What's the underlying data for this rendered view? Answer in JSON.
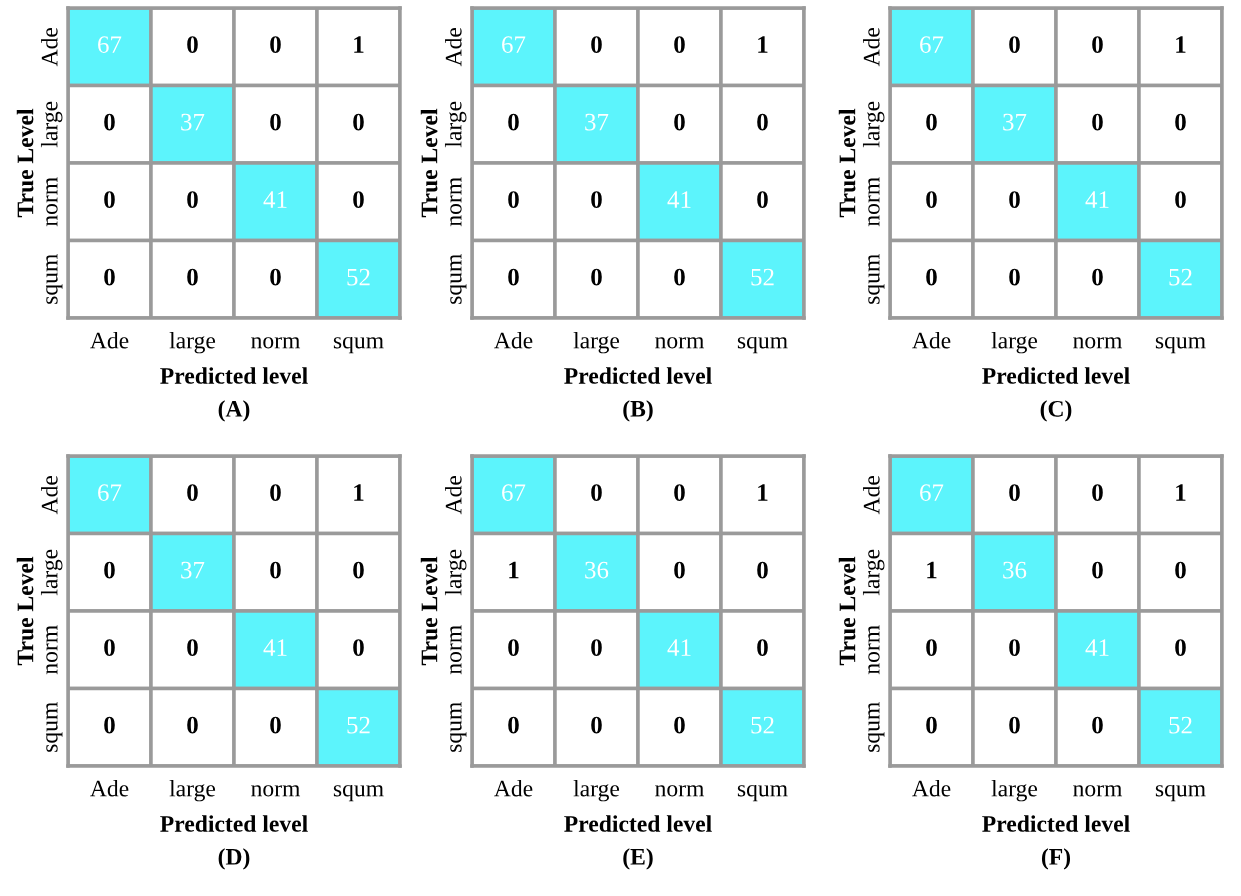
{
  "chart_data": [
    {
      "type": "heatmap",
      "title": "(A)",
      "xlabel": "Predicted level",
      "ylabel": "True Level",
      "categories": [
        "Ade",
        "large",
        "norm",
        "squm"
      ],
      "y_categories": [
        "Ade",
        "large",
        "norm",
        "squm"
      ],
      "cells": [
        [
          67,
          0,
          0,
          1
        ],
        [
          0,
          37,
          0,
          0
        ],
        [
          0,
          0,
          41,
          0
        ],
        [
          0,
          0,
          0,
          52
        ]
      ],
      "colors": [
        "#ffffff",
        "#5cf4fc"
      ],
      "data_labels": true
    },
    {
      "type": "heatmap",
      "title": "(B)",
      "xlabel": "Predicted level",
      "ylabel": "True Level",
      "categories": [
        "Ade",
        "large",
        "norm",
        "squm"
      ],
      "y_categories": [
        "Ade",
        "large",
        "norm",
        "squm"
      ],
      "cells": [
        [
          67,
          0,
          0,
          1
        ],
        [
          0,
          37,
          0,
          0
        ],
        [
          0,
          0,
          41,
          0
        ],
        [
          0,
          0,
          0,
          52
        ]
      ],
      "colors": [
        "#ffffff",
        "#5cf4fc"
      ],
      "data_labels": true
    },
    {
      "type": "heatmap",
      "title": "(C)",
      "xlabel": "Predicted level",
      "ylabel": "True Level",
      "categories": [
        "Ade",
        "large",
        "norm",
        "squm"
      ],
      "y_categories": [
        "Ade",
        "large",
        "norm",
        "squm"
      ],
      "cells": [
        [
          67,
          0,
          0,
          1
        ],
        [
          0,
          37,
          0,
          0
        ],
        [
          0,
          0,
          41,
          0
        ],
        [
          0,
          0,
          0,
          52
        ]
      ],
      "colors": [
        "#ffffff",
        "#5cf4fc"
      ],
      "data_labels": true
    },
    {
      "type": "heatmap",
      "title": "(D)",
      "xlabel": "Predicted level",
      "ylabel": "True Level",
      "categories": [
        "Ade",
        "large",
        "norm",
        "squm"
      ],
      "y_categories": [
        "Ade",
        "large",
        "norm",
        "squm"
      ],
      "cells": [
        [
          67,
          0,
          0,
          1
        ],
        [
          0,
          37,
          0,
          0
        ],
        [
          0,
          0,
          41,
          0
        ],
        [
          0,
          0,
          0,
          52
        ]
      ],
      "colors": [
        "#ffffff",
        "#5cf4fc"
      ],
      "data_labels": true
    },
    {
      "type": "heatmap",
      "title": "(E)",
      "xlabel": "Predicted level",
      "ylabel": "True Level",
      "categories": [
        "Ade",
        "large",
        "norm",
        "squm"
      ],
      "y_categories": [
        "Ade",
        "large",
        "norm",
        "squm"
      ],
      "cells": [
        [
          67,
          0,
          0,
          1
        ],
        [
          1,
          36,
          0,
          0
        ],
        [
          0,
          0,
          41,
          0
        ],
        [
          0,
          0,
          0,
          52
        ]
      ],
      "colors": [
        "#ffffff",
        "#5cf4fc"
      ],
      "data_labels": true
    },
    {
      "type": "heatmap",
      "title": "(F)",
      "xlabel": "Predicted level",
      "ylabel": "True Level",
      "categories": [
        "Ade",
        "large",
        "norm",
        "squm"
      ],
      "y_categories": [
        "Ade",
        "large",
        "norm",
        "squm"
      ],
      "cells": [
        [
          67,
          0,
          0,
          1
        ],
        [
          1,
          36,
          0,
          0
        ],
        [
          0,
          0,
          41,
          0
        ],
        [
          0,
          0,
          0,
          52
        ]
      ],
      "colors": [
        "#ffffff",
        "#5cf4fc"
      ],
      "data_labels": true
    }
  ]
}
